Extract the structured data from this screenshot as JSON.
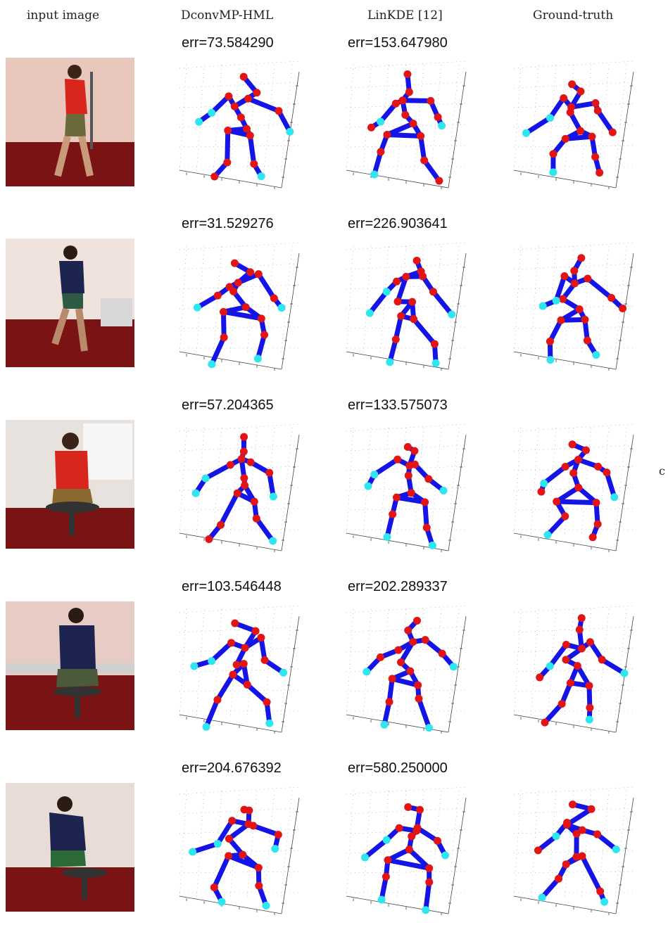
{
  "headers": {
    "col1": "input image",
    "col2": "DconvMP-HML",
    "col3": "LinKDE [12]",
    "col4": "Ground-truth"
  },
  "stray_char": "c",
  "rows": [
    {
      "err_a": "err=73.584290",
      "err_b": "err=153.647980"
    },
    {
      "err_a": "err=31.529276",
      "err_b": "err=226.903641"
    },
    {
      "err_a": "err=57.204365",
      "err_b": "err=133.575073"
    },
    {
      "err_a": "err=103.546448",
      "err_b": "err=202.289337"
    },
    {
      "err_a": "err=204.676392",
      "err_b": "err=580.250000"
    }
  ],
  "colors": {
    "bone": "#1414e6",
    "joint_red": "#e31414",
    "joint_cyan": "#2ee6f0"
  }
}
